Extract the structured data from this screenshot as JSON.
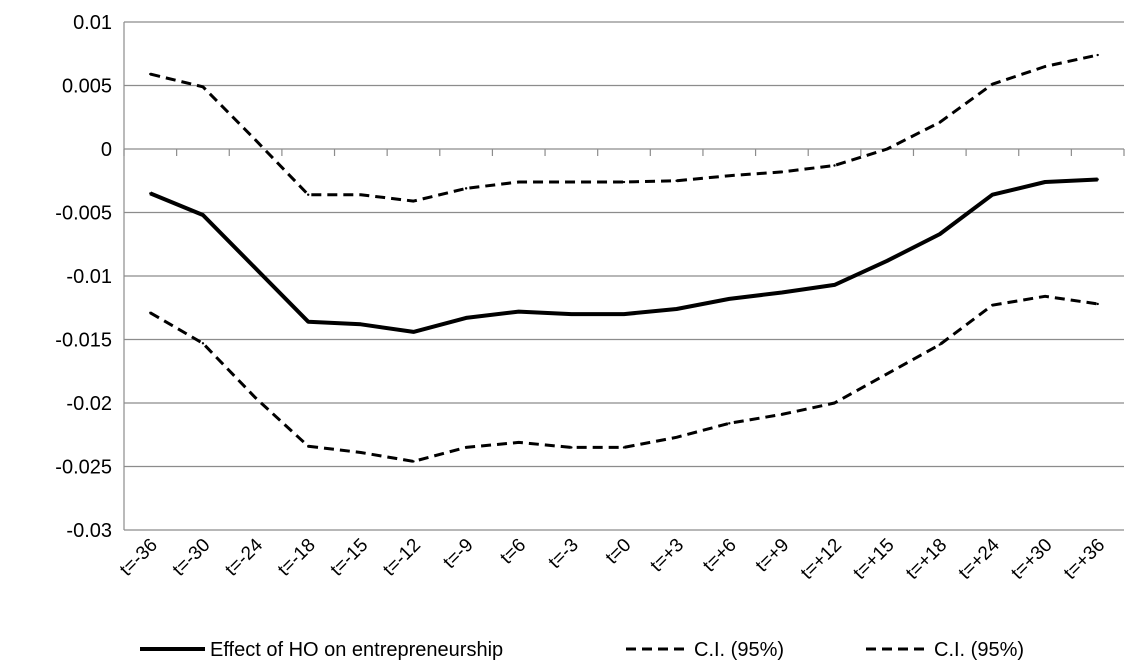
{
  "chart_data": {
    "type": "line",
    "title": "",
    "xlabel": "",
    "ylabel": "",
    "categories": [
      "t=-36",
      "t=-30",
      "t=-24",
      "t=-18",
      "t=-15",
      "t=-12",
      "t=-9",
      "t=6",
      "t=-3",
      "t=0",
      "t=+3",
      "t=+6",
      "t=+9",
      "t=+12",
      "t=+15",
      "t=+18",
      "t=+24",
      "t=+30",
      "t=+36"
    ],
    "ylim": [
      -0.03,
      0.01
    ],
    "yticks": [
      0.01,
      0.005,
      0,
      -0.005,
      -0.01,
      -0.015,
      -0.02,
      -0.025,
      -0.03
    ],
    "ytick_labels": [
      "0.01",
      "0.005",
      "0",
      "-0.005",
      "-0.01",
      "-0.015",
      "-0.02",
      "-0.025",
      "-0.03"
    ],
    "grid": true,
    "legend_position": "bottom",
    "series": [
      {
        "name": "Effect of HO on entrepreneurship",
        "style": "solid",
        "color": "#000000",
        "values": [
          -0.0035,
          -0.0052,
          -0.0094,
          -0.0136,
          -0.0138,
          -0.0144,
          -0.0133,
          -0.0128,
          -0.013,
          -0.013,
          -0.0126,
          -0.0118,
          -0.0113,
          -0.0107,
          -0.0088,
          -0.0067,
          -0.0036,
          -0.0026,
          -0.0024
        ]
      },
      {
        "name": "C.I. (95%)",
        "style": "dashed",
        "color": "#000000",
        "values": [
          0.0059,
          0.0049,
          0.0007,
          -0.0036,
          -0.0036,
          -0.0041,
          -0.0031,
          -0.0026,
          -0.0026,
          -0.0026,
          -0.0025,
          -0.0021,
          -0.0018,
          -0.0013,
          0.0,
          0.0021,
          0.0051,
          0.0065,
          0.0074
        ]
      },
      {
        "name": "C.I. (95%)",
        "style": "dashed",
        "color": "#000000",
        "values": [
          -0.0129,
          -0.0153,
          -0.0196,
          -0.0234,
          -0.0239,
          -0.0246,
          -0.0235,
          -0.0231,
          -0.0235,
          -0.0235,
          -0.0227,
          -0.0216,
          -0.0209,
          -0.02,
          -0.0177,
          -0.0154,
          -0.0123,
          -0.0116,
          -0.0122
        ]
      }
    ]
  }
}
